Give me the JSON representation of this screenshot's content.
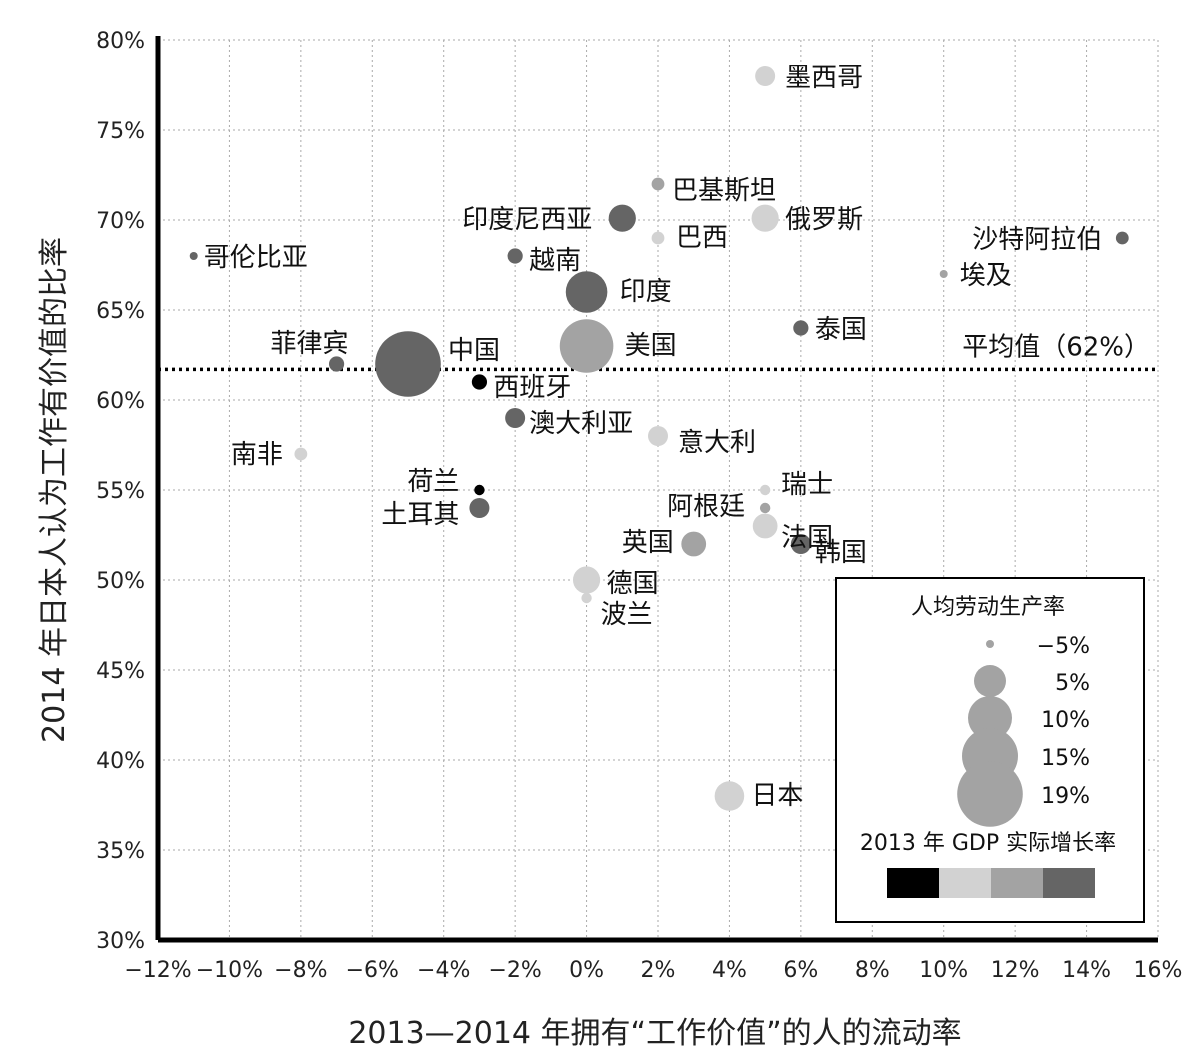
{
  "chart_data": {
    "type": "scatter",
    "title": "",
    "xlabel": "2013—2014 年拥有“工作价值”的人的流动率",
    "ylabel": "2014 年日本人认为工作有价值的比率",
    "xlim": [
      -12,
      16
    ],
    "ylim": [
      30,
      80
    ],
    "x_ticks": [
      -12,
      -10,
      -8,
      -6,
      -4,
      -2,
      0,
      2,
      4,
      6,
      8,
      10,
      12,
      14,
      16
    ],
    "x_tick_labels": [
      "−12%",
      "−10%",
      "−8%",
      "−6%",
      "−4%",
      "−2%",
      "0%",
      "2%",
      "4%",
      "6%",
      "8%",
      "10%",
      "12%",
      "14%",
      "16%"
    ],
    "y_ticks": [
      30,
      35,
      40,
      45,
      50,
      55,
      60,
      65,
      70,
      75,
      80
    ],
    "y_tick_labels": [
      "30%",
      "35%",
      "40%",
      "45%",
      "50%",
      "55%",
      "60%",
      "65%",
      "70%",
      "75%",
      "80%"
    ],
    "grid": true,
    "reference_line": {
      "y": 61.7,
      "label": "平均值（62%）"
    },
    "size_legend": {
      "title": "人均劳动生产率",
      "entries": [
        {
          "label": "−5%",
          "value": -5
        },
        {
          "label": "5%",
          "value": 5
        },
        {
          "label": "10%",
          "value": 10
        },
        {
          "label": "15%",
          "value": 15
        },
        {
          "label": "19%",
          "value": 19
        }
      ]
    },
    "color_legend": {
      "title": "2013 年 GDP 实际增长率",
      "colors": [
        "#000000",
        "#d2d2d2",
        "#a3a3a3",
        "#656565"
      ]
    },
    "points": [
      {
        "name": "墨西哥",
        "x": 5,
        "y": 78,
        "productivity": 0,
        "color": "#d2d2d2"
      },
      {
        "name": "巴基斯坦",
        "x": 2,
        "y": 72,
        "productivity": -3,
        "color": "#a3a3a3"
      },
      {
        "name": "印度尼西亚",
        "x": 1,
        "y": 70.1,
        "productivity": 3,
        "color": "#656565"
      },
      {
        "name": "巴西",
        "x": 2,
        "y": 69,
        "productivity": -3,
        "color": "#d2d2d2"
      },
      {
        "name": "俄罗斯",
        "x": 5,
        "y": 70.1,
        "productivity": 3,
        "color": "#d2d2d2"
      },
      {
        "name": "沙特阿拉伯",
        "x": 15,
        "y": 69,
        "productivity": -3,
        "color": "#656565"
      },
      {
        "name": "哥伦比亚",
        "x": -11,
        "y": 68,
        "productivity": -5,
        "color": "#656565"
      },
      {
        "name": "越南",
        "x": -2,
        "y": 68,
        "productivity": -2,
        "color": "#656565"
      },
      {
        "name": "埃及",
        "x": 10,
        "y": 67,
        "productivity": -5,
        "color": "#a3a3a3"
      },
      {
        "name": "印度",
        "x": 0,
        "y": 66,
        "productivity": 9,
        "color": "#656565"
      },
      {
        "name": "泰国",
        "x": 6,
        "y": 64,
        "productivity": -2,
        "color": "#656565"
      },
      {
        "name": "美国",
        "x": 0,
        "y": 63,
        "productivity": 14,
        "color": "#a3a3a3"
      },
      {
        "name": "中国",
        "x": -5,
        "y": 62,
        "productivity": 19,
        "color": "#656565"
      },
      {
        "name": "菲律宾",
        "x": -7,
        "y": 62,
        "productivity": -2,
        "color": "#656565"
      },
      {
        "name": "西班牙",
        "x": -3,
        "y": 61,
        "productivity": -2,
        "color": "#000000"
      },
      {
        "name": "澳大利亚",
        "x": -2,
        "y": 59,
        "productivity": 0,
        "color": "#656565"
      },
      {
        "name": "意大利",
        "x": 2,
        "y": 58,
        "productivity": 0,
        "color": "#d2d2d2"
      },
      {
        "name": "南非",
        "x": -8,
        "y": 57,
        "productivity": -3,
        "color": "#d2d2d2"
      },
      {
        "name": "荷兰",
        "x": -3,
        "y": 55,
        "productivity": -4,
        "color": "#000000"
      },
      {
        "name": "土耳其",
        "x": -3,
        "y": 54,
        "productivity": 0,
        "color": "#656565"
      },
      {
        "name": "瑞士",
        "x": 5,
        "y": 55,
        "productivity": -4,
        "color": "#d2d2d2"
      },
      {
        "name": "阿根廷",
        "x": 5,
        "y": 54,
        "productivity": -4,
        "color": "#a3a3a3"
      },
      {
        "name": "法国",
        "x": 5,
        "y": 53,
        "productivity": 2,
        "color": "#d2d2d2"
      },
      {
        "name": "英国",
        "x": 3,
        "y": 52,
        "productivity": 2,
        "color": "#a3a3a3"
      },
      {
        "name": "韩国",
        "x": 6,
        "y": 52,
        "productivity": 0,
        "color": "#656565"
      },
      {
        "name": "德国",
        "x": 0,
        "y": 50,
        "productivity": 3,
        "color": "#d2d2d2"
      },
      {
        "name": "波兰",
        "x": 0,
        "y": 49,
        "productivity": -4,
        "color": "#d2d2d2"
      },
      {
        "name": "日本",
        "x": 4,
        "y": 38,
        "productivity": 4,
        "color": "#d2d2d2"
      }
    ]
  }
}
